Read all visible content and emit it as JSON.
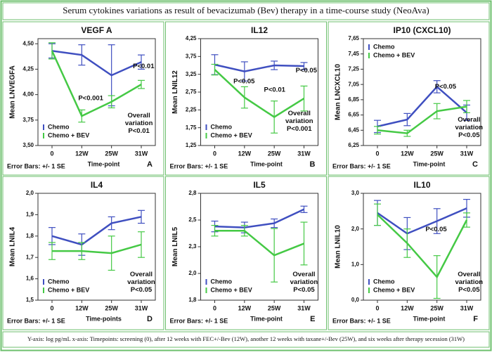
{
  "title": "Serum cytokines variations as result of bevacizumab (Bev) therapy in a time-course study (NeoAva)",
  "footnote": "Y-axis: log pg/mL x-axis: Timepoints: screening (0), after 12 weeks with FEC+/-Bev (12W), another 12 weeks with taxane+/-Bev (25W), and six weeks after therapy secession (31W)",
  "chart_data": [
    {
      "type": "line",
      "title": "VEGF A",
      "y_label": "Mean LNVEGFA",
      "x_label": "Time-point",
      "error_note": "Error Bars: +/- 1 SE",
      "panel_label": "A",
      "legend": "lower left",
      "categories": [
        "0",
        "12W",
        "25W",
        "31W"
      ],
      "series": [
        {
          "name": "Chemo",
          "color": "#3f4fc0",
          "values": [
            4.43,
            4.39,
            4.19,
            4.32
          ],
          "errors": [
            0.07,
            0.1,
            0.3,
            0.07
          ]
        },
        {
          "name": "Chemo + BEV",
          "color": "#45c945",
          "values": [
            4.43,
            3.79,
            3.93,
            4.1
          ],
          "errors": [
            0.08,
            0.06,
            0.06,
            0.04
          ]
        }
      ],
      "ylim": [
        3.5,
        4.55
      ],
      "yticks": [
        {
          "value": 3.5,
          "label": "3,50"
        },
        {
          "value": 3.75,
          "label": "3,75"
        },
        {
          "value": 4.0,
          "label": "4,00"
        },
        {
          "value": 4.25,
          "label": "4,25"
        },
        {
          "value": 4.5,
          "label": "4,50"
        }
      ],
      "annotations": [
        [
          "P<0.01"
        ],
        [
          "P<0.001"
        ],
        [
          "Overall",
          "variation",
          "P<0.01"
        ]
      ]
    },
    {
      "type": "line",
      "title": "IL12",
      "y_label": "Mean LNIL12",
      "x_label": "Time-point",
      "error_note": "Error Bars: +/- 1 SE",
      "panel_label": "B",
      "legend": "lower left",
      "categories": [
        "0",
        "12W",
        "25W",
        "31W"
      ],
      "series": [
        {
          "name": "Chemo",
          "color": "#3f4fc0",
          "values": [
            3.52,
            3.33,
            3.5,
            3.48
          ],
          "errors": [
            0.28,
            0.27,
            0.12,
            0.1
          ]
        },
        {
          "name": "Chemo + BEV",
          "color": "#45c945",
          "values": [
            3.38,
            2.6,
            2.05,
            2.57
          ],
          "errors": [
            0.15,
            0.3,
            0.45,
            0.35
          ]
        }
      ],
      "ylim": [
        1.25,
        4.25
      ],
      "yticks": [
        {
          "value": 1.25,
          "label": "1,25"
        },
        {
          "value": 1.75,
          "label": "1,75"
        },
        {
          "value": 2.25,
          "label": "2,25"
        },
        {
          "value": 2.75,
          "label": "2,75"
        },
        {
          "value": 3.25,
          "label": "3,25"
        },
        {
          "value": 3.75,
          "label": "3,75"
        },
        {
          "value": 4.25,
          "label": "4,25"
        }
      ],
      "annotations": [
        [
          "P<0.05"
        ],
        [
          "P<0.01"
        ],
        [
          "P<0.05"
        ],
        [
          "Overall",
          "variation",
          "P<0.001"
        ]
      ]
    },
    {
      "type": "line",
      "title": "IP10 (CXCL10)",
      "y_label": "Mean LNCXCL10",
      "x_label": "Time-point",
      "error_note": "Error Bars: +/- 1 SE",
      "panel_label": "C",
      "legend": "upper left",
      "categories": [
        "0",
        "12W",
        "25W",
        "31W"
      ],
      "series": [
        {
          "name": "Chemo",
          "color": "#3f4fc0",
          "values": [
            6.5,
            6.59,
            7.02,
            6.68
          ],
          "errors": [
            0.08,
            0.08,
            0.08,
            0.1
          ]
        },
        {
          "name": "Chemo + BEV",
          "color": "#45c945",
          "values": [
            6.45,
            6.41,
            6.7,
            6.76
          ],
          "errors": [
            0.05,
            0.04,
            0.1,
            0.08
          ]
        }
      ],
      "ylim": [
        6.25,
        7.65
      ],
      "yticks": [
        {
          "value": 6.25,
          "label": "6,25"
        },
        {
          "value": 6.45,
          "label": "6,45"
        },
        {
          "value": 6.65,
          "label": "6,65"
        },
        {
          "value": 6.85,
          "label": "6,85"
        },
        {
          "value": 7.05,
          "label": "7,05"
        },
        {
          "value": 7.25,
          "label": "7,25"
        },
        {
          "value": 7.45,
          "label": "7,45"
        },
        {
          "value": 7.65,
          "label": "7,65"
        }
      ],
      "annotations": [
        [
          "P<0.05"
        ],
        [
          "Overall",
          "variation",
          "P<0.05"
        ]
      ]
    },
    {
      "type": "line",
      "title": "IL4",
      "y_label": "Mean LNIL4",
      "x_label": "Time-points",
      "error_note": "Error Bars: +/- 1 SE",
      "panel_label": "D",
      "legend": "lower left",
      "categories": [
        "0",
        "12W",
        "25W",
        "31W"
      ],
      "series": [
        {
          "name": "Chemo",
          "color": "#3f4fc0",
          "values": [
            1.8,
            1.76,
            1.86,
            1.89
          ],
          "errors": [
            0.04,
            0.05,
            0.03,
            0.03
          ]
        },
        {
          "name": "Chemo + BEV",
          "color": "#45c945",
          "values": [
            1.73,
            1.73,
            1.72,
            1.76
          ],
          "errors": [
            0.04,
            0.04,
            0.08,
            0.06
          ]
        }
      ],
      "ylim": [
        1.5,
        2.0
      ],
      "yticks": [
        {
          "value": 1.5,
          "label": "1,5"
        },
        {
          "value": 1.6,
          "label": "1,6"
        },
        {
          "value": 1.7,
          "label": "1,7"
        },
        {
          "value": 1.8,
          "label": "1,8"
        },
        {
          "value": 1.9,
          "label": "1,9"
        },
        {
          "value": 2.0,
          "label": "2,0"
        }
      ],
      "annotations": [
        [
          "Overall",
          "variation",
          "P<0.05"
        ]
      ]
    },
    {
      "type": "line",
      "title": "IL5",
      "y_label": "Mean LNIL5",
      "x_label": "Time-point",
      "error_note": "Error Bars: +/- 1 SE",
      "panel_label": "E",
      "legend": "lower left",
      "categories": [
        "0",
        "12W",
        "25W",
        "31W"
      ],
      "series": [
        {
          "name": "Chemo",
          "color": "#3f4fc0",
          "values": [
            2.44,
            2.43,
            2.47,
            2.6
          ],
          "errors": [
            0.05,
            0.05,
            0.04,
            0.03
          ]
        },
        {
          "name": "Chemo + BEV",
          "color": "#45c945",
          "values": [
            2.4,
            2.4,
            2.17,
            2.28
          ],
          "errors": [
            0.05,
            0.05,
            0.25,
            0.2
          ]
        }
      ],
      "ylim": [
        1.75,
        2.75
      ],
      "yticks": [
        {
          "value": 1.75,
          "label": "1,8"
        },
        {
          "value": 2.0,
          "label": "2,0"
        },
        {
          "value": 2.25,
          "label": "2,3"
        },
        {
          "value": 2.5,
          "label": "2,5"
        },
        {
          "value": 2.75,
          "label": "2,8"
        }
      ],
      "annotations": [
        [
          "Overall",
          "variation",
          "P<0.05"
        ]
      ]
    },
    {
      "type": "line",
      "title": "IL10",
      "y_label": "Mean LNIL10",
      "x_label": "Time-point",
      "error_note": "Error Bars: +/- 1 SE",
      "panel_label": "F",
      "legend": "lower left",
      "categories": [
        "0",
        "12W",
        "25W",
        "31W"
      ],
      "series": [
        {
          "name": "Chemo",
          "color": "#3f4fc0",
          "values": [
            2.45,
            1.87,
            2.22,
            2.58
          ],
          "errors": [
            0.35,
            0.45,
            0.35,
            0.25
          ]
        },
        {
          "name": "Chemo + BEV",
          "color": "#45c945",
          "values": [
            2.4,
            1.6,
            0.65,
            2.25
          ],
          "errors": [
            0.3,
            0.4,
            0.6,
            0.2
          ]
        }
      ],
      "ylim": [
        0,
        3
      ],
      "yticks": [
        {
          "value": 0,
          "label": "0,0"
        },
        {
          "value": 1,
          "label": "1,0"
        },
        {
          "value": 2,
          "label": "2,0"
        },
        {
          "value": 3,
          "label": "3,0"
        }
      ],
      "annotations": [
        [
          "P<0.05"
        ],
        [
          "Overall",
          "variation",
          "P<0.05"
        ]
      ]
    }
  ]
}
